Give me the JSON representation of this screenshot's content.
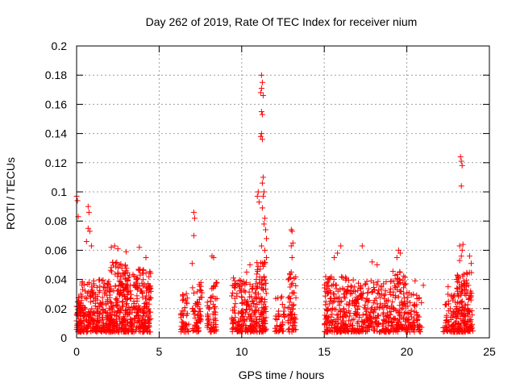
{
  "chart_data": {
    "type": "scatter",
    "title": "Day 262 of 2019, Rate Of TEC Index for receiver nium",
    "xlabel": "GPS time / hours",
    "ylabel": "ROTI / TECUs",
    "xlim": [
      0,
      25
    ],
    "ylim": [
      0,
      0.2
    ],
    "xticks": [
      0,
      5,
      10,
      15,
      20,
      25
    ],
    "yticks": [
      0,
      0.02,
      0.04,
      0.06,
      0.08,
      0.1,
      0.12,
      0.14,
      0.16,
      0.18,
      0.2
    ],
    "xtick_labels": [
      "0",
      "5",
      "10",
      "15",
      "20",
      "25"
    ],
    "ytick_labels": [
      "0",
      "0.02",
      "0.04",
      "0.06",
      "0.08",
      "0.1",
      "0.12",
      "0.14",
      "0.16",
      "0.18",
      "0.2"
    ],
    "grid": true,
    "marker": "+",
    "series_color": "#ff0000",
    "clusters": [
      {
        "x_range": [
          0.0,
          0.3
        ],
        "y_base": 0.012,
        "y_spread": 0.014,
        "count": 60
      },
      {
        "x_range": [
          0.3,
          1.2
        ],
        "y_base": 0.015,
        "y_spread": 0.02,
        "count": 110
      },
      {
        "x_range": [
          1.2,
          2.0
        ],
        "y_base": 0.016,
        "y_spread": 0.02,
        "count": 110
      },
      {
        "x_range": [
          2.0,
          3.3
        ],
        "y_base": 0.02,
        "y_spread": 0.028,
        "count": 240
      },
      {
        "x_range": [
          3.3,
          4.5
        ],
        "y_base": 0.018,
        "y_spread": 0.025,
        "count": 180
      },
      {
        "x_range": [
          6.3,
          6.8
        ],
        "y_base": 0.012,
        "y_spread": 0.015,
        "count": 40
      },
      {
        "x_range": [
          7.0,
          7.6
        ],
        "y_base": 0.016,
        "y_spread": 0.02,
        "count": 60
      },
      {
        "x_range": [
          7.9,
          8.5
        ],
        "y_base": 0.014,
        "y_spread": 0.02,
        "count": 60
      },
      {
        "x_range": [
          9.4,
          10.8
        ],
        "y_base": 0.016,
        "y_spread": 0.02,
        "count": 150
      },
      {
        "x_range": [
          10.8,
          11.5
        ],
        "y_base": 0.02,
        "y_spread": 0.028,
        "count": 110
      },
      {
        "x_range": [
          12.0,
          12.6
        ],
        "y_base": 0.01,
        "y_spread": 0.015,
        "count": 40
      },
      {
        "x_range": [
          12.8,
          13.3
        ],
        "y_base": 0.015,
        "y_spread": 0.025,
        "count": 60
      },
      {
        "x_range": [
          15.0,
          17.0
        ],
        "y_base": 0.016,
        "y_spread": 0.022,
        "count": 240
      },
      {
        "x_range": [
          17.0,
          19.0
        ],
        "y_base": 0.016,
        "y_spread": 0.02,
        "count": 200
      },
      {
        "x_range": [
          19.0,
          20.0
        ],
        "y_base": 0.018,
        "y_spread": 0.024,
        "count": 120
      },
      {
        "x_range": [
          20.0,
          20.9
        ],
        "y_base": 0.012,
        "y_spread": 0.016,
        "count": 70
      },
      {
        "x_range": [
          22.2,
          23.0
        ],
        "y_base": 0.012,
        "y_spread": 0.015,
        "count": 70
      },
      {
        "x_range": [
          23.0,
          24.0
        ],
        "y_base": 0.016,
        "y_spread": 0.025,
        "count": 160
      }
    ],
    "outliers": [
      {
        "x": 0.0,
        "y": 0.097
      },
      {
        "x": 0.05,
        "y": 0.094
      },
      {
        "x": 0.1,
        "y": 0.083
      },
      {
        "x": 0.7,
        "y": 0.09
      },
      {
        "x": 0.75,
        "y": 0.086
      },
      {
        "x": 0.7,
        "y": 0.075
      },
      {
        "x": 0.8,
        "y": 0.073
      },
      {
        "x": 0.9,
        "y": 0.063
      },
      {
        "x": 0.6,
        "y": 0.066
      },
      {
        "x": 2.1,
        "y": 0.062
      },
      {
        "x": 2.3,
        "y": 0.063
      },
      {
        "x": 2.5,
        "y": 0.061
      },
      {
        "x": 3.0,
        "y": 0.059
      },
      {
        "x": 3.8,
        "y": 0.062
      },
      {
        "x": 4.2,
        "y": 0.055
      },
      {
        "x": 7.1,
        "y": 0.086
      },
      {
        "x": 7.15,
        "y": 0.082
      },
      {
        "x": 7.1,
        "y": 0.07
      },
      {
        "x": 7.0,
        "y": 0.051
      },
      {
        "x": 8.2,
        "y": 0.056
      },
      {
        "x": 8.3,
        "y": 0.055
      },
      {
        "x": 9.5,
        "y": 0.041
      },
      {
        "x": 10.3,
        "y": 0.045
      },
      {
        "x": 10.5,
        "y": 0.05
      },
      {
        "x": 11.0,
        "y": 0.1
      },
      {
        "x": 10.95,
        "y": 0.097
      },
      {
        "x": 11.05,
        "y": 0.093
      },
      {
        "x": 11.2,
        "y": 0.18
      },
      {
        "x": 11.25,
        "y": 0.175
      },
      {
        "x": 11.2,
        "y": 0.171
      },
      {
        "x": 11.15,
        "y": 0.168
      },
      {
        "x": 11.3,
        "y": 0.166
      },
      {
        "x": 11.2,
        "y": 0.155
      },
      {
        "x": 11.25,
        "y": 0.153
      },
      {
        "x": 11.2,
        "y": 0.14
      },
      {
        "x": 11.15,
        "y": 0.138
      },
      {
        "x": 11.25,
        "y": 0.136
      },
      {
        "x": 11.3,
        "y": 0.11
      },
      {
        "x": 11.25,
        "y": 0.106
      },
      {
        "x": 11.35,
        "y": 0.1
      },
      {
        "x": 11.3,
        "y": 0.097
      },
      {
        "x": 11.25,
        "y": 0.089
      },
      {
        "x": 11.4,
        "y": 0.082
      },
      {
        "x": 11.35,
        "y": 0.078
      },
      {
        "x": 11.45,
        "y": 0.074
      },
      {
        "x": 11.5,
        "y": 0.068
      },
      {
        "x": 11.2,
        "y": 0.063
      },
      {
        "x": 11.4,
        "y": 0.06
      },
      {
        "x": 11.5,
        "y": 0.055
      },
      {
        "x": 13.0,
        "y": 0.074
      },
      {
        "x": 13.05,
        "y": 0.073
      },
      {
        "x": 13.1,
        "y": 0.065
      },
      {
        "x": 13.0,
        "y": 0.063
      },
      {
        "x": 13.05,
        "y": 0.055
      },
      {
        "x": 13.0,
        "y": 0.045
      },
      {
        "x": 16.0,
        "y": 0.063
      },
      {
        "x": 15.8,
        "y": 0.058
      },
      {
        "x": 15.6,
        "y": 0.055
      },
      {
        "x": 17.3,
        "y": 0.063
      },
      {
        "x": 17.9,
        "y": 0.052
      },
      {
        "x": 18.2,
        "y": 0.05
      },
      {
        "x": 19.5,
        "y": 0.06
      },
      {
        "x": 19.6,
        "y": 0.058
      },
      {
        "x": 19.4,
        "y": 0.055
      },
      {
        "x": 20.5,
        "y": 0.039
      },
      {
        "x": 21.0,
        "y": 0.036
      },
      {
        "x": 22.5,
        "y": 0.035
      },
      {
        "x": 23.25,
        "y": 0.124
      },
      {
        "x": 23.3,
        "y": 0.121
      },
      {
        "x": 23.35,
        "y": 0.118
      },
      {
        "x": 23.3,
        "y": 0.104
      },
      {
        "x": 23.2,
        "y": 0.063
      },
      {
        "x": 23.4,
        "y": 0.064
      },
      {
        "x": 23.35,
        "y": 0.06
      },
      {
        "x": 23.3,
        "y": 0.056
      },
      {
        "x": 23.2,
        "y": 0.053
      },
      {
        "x": 23.8,
        "y": 0.056
      },
      {
        "x": 23.9,
        "y": 0.051
      }
    ]
  }
}
